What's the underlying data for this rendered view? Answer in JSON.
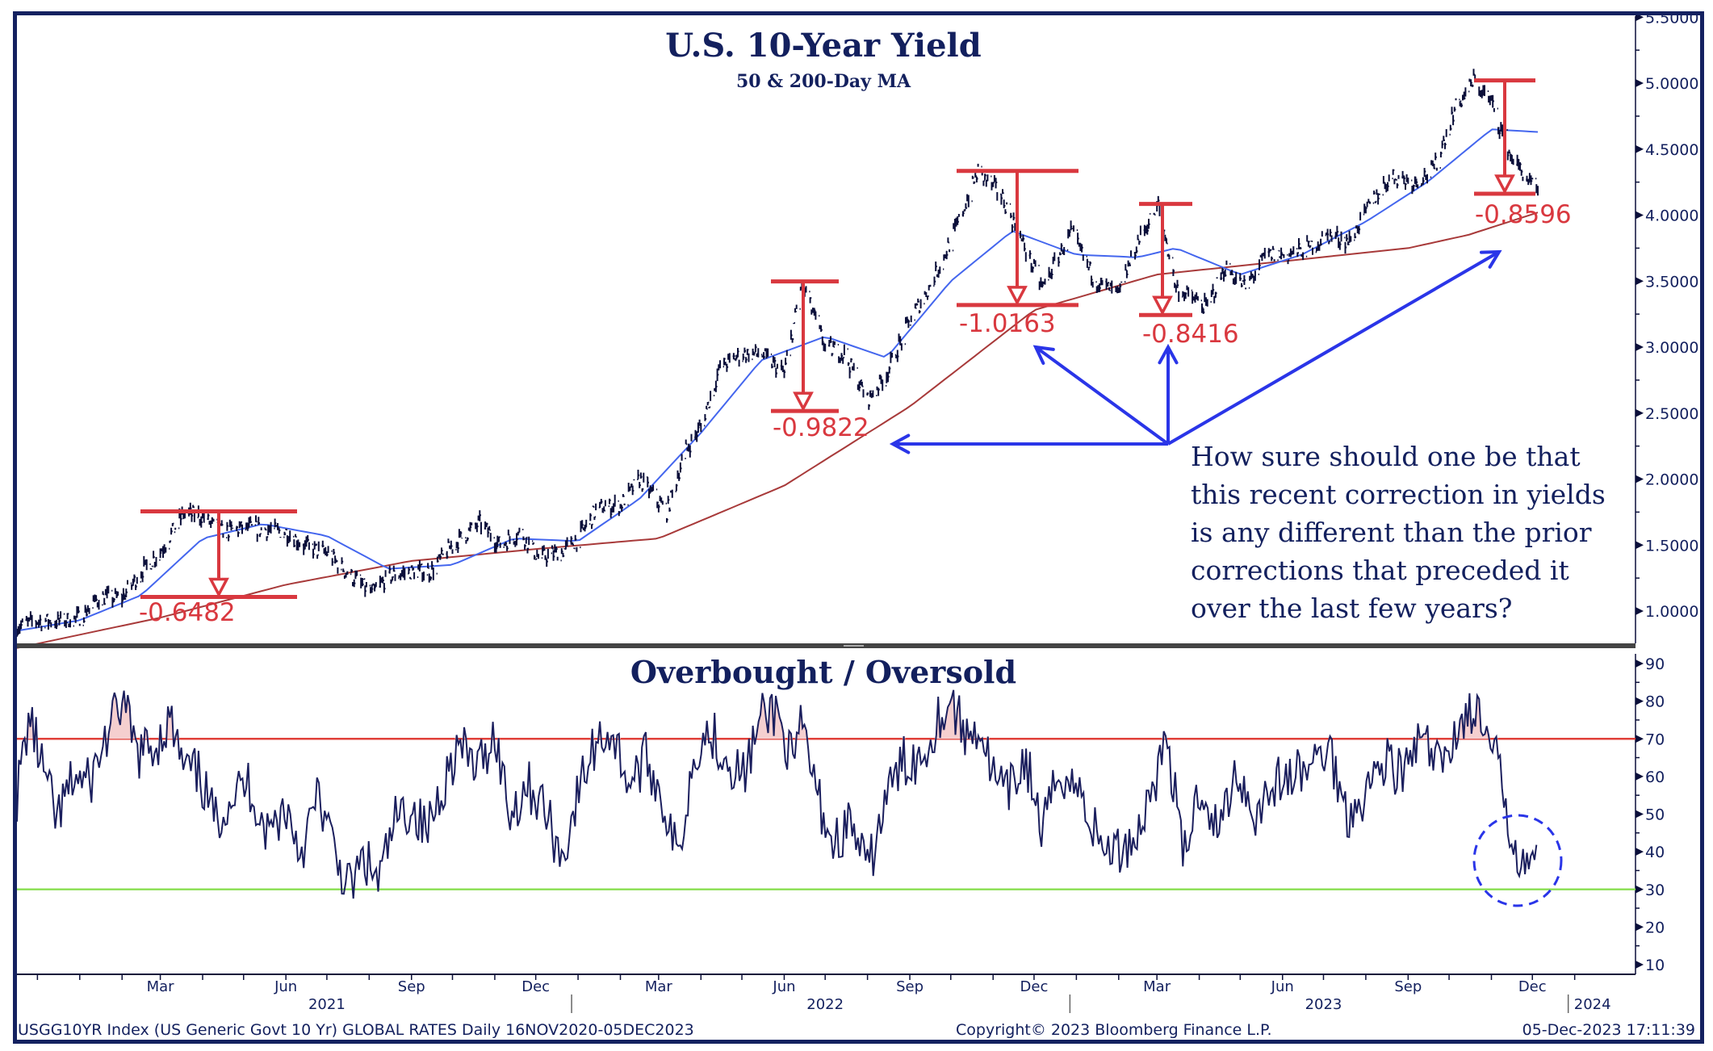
{
  "colors": {
    "frame": "#142160",
    "price": "#0b0f3a",
    "ma50": "#4466ee",
    "ma200": "#a83a3a",
    "annotation_red": "#d9383f",
    "annotation_blue": "#2a35e8",
    "overbought_line": "#e0403a",
    "oversold_line": "#8fe05a",
    "overbought_fill": "#f5cfcf",
    "rsi": "#1b1f5e",
    "title": "#13205e"
  },
  "footer": {
    "security": "USGG10YR Index (US Generic Govt 10 Yr) GLOBAL RATES  Daily 16NOV2020-05DEC2023",
    "copyright": "Copyright© 2023 Bloomberg Finance L.P.",
    "timestamp": "05-Dec-2023 17:11:39"
  },
  "note": {
    "lines": [
      "How sure should one be that",
      "this recent correction in yields",
      "is any different than the prior",
      "corrections that preceded it",
      "over the last few years?"
    ]
  },
  "chart_data": [
    {
      "type": "line",
      "title": "U.S. 10-Year Yield",
      "subtitle": "50 & 200-Day MA",
      "xlabel": "",
      "ylabel": "",
      "y_axis_side": "right",
      "ylim": [
        0.85,
        5.5
      ],
      "yticks": [
        1.0,
        1.5,
        2.0,
        2.5,
        3.0,
        3.5,
        4.0,
        4.5,
        5.0,
        5.5
      ],
      "ytick_labels": [
        "1.0000",
        "1.5000",
        "2.0000",
        "2.5000",
        "3.0000",
        "3.5000",
        "4.0000",
        "4.5000",
        "5.0000",
        "5.5000"
      ],
      "x_range": [
        "2020-11-16",
        "2024-01-20"
      ],
      "grid": false,
      "legend": "none",
      "series": [
        {
          "name": "USGG10YR Index",
          "style": "bars",
          "x": [
            "2020-11-16",
            "2020-12-01",
            "2020-12-15",
            "2021-01-01",
            "2021-01-15",
            "2021-02-01",
            "2021-02-15",
            "2021-03-01",
            "2021-03-18",
            "2021-03-31",
            "2021-04-15",
            "2021-05-01",
            "2021-05-15",
            "2021-06-01",
            "2021-06-15",
            "2021-07-01",
            "2021-07-15",
            "2021-08-03",
            "2021-08-15",
            "2021-09-01",
            "2021-09-15",
            "2021-10-01",
            "2021-10-21",
            "2021-11-05",
            "2021-11-20",
            "2021-12-03",
            "2021-12-20",
            "2022-01-01",
            "2022-01-15",
            "2022-02-01",
            "2022-02-15",
            "2022-03-07",
            "2022-03-20",
            "2022-04-01",
            "2022-04-15",
            "2022-05-01",
            "2022-05-15",
            "2022-06-01",
            "2022-06-14",
            "2022-07-01",
            "2022-07-15",
            "2022-08-01",
            "2022-08-15",
            "2022-09-01",
            "2022-09-15",
            "2022-10-01",
            "2022-10-21",
            "2022-11-07",
            "2022-11-20",
            "2022-12-07",
            "2022-12-28",
            "2023-01-15",
            "2023-02-01",
            "2023-02-15",
            "2023-03-02",
            "2023-03-15",
            "2023-04-06",
            "2023-04-20",
            "2023-05-05",
            "2023-05-20",
            "2023-06-05",
            "2023-06-20",
            "2023-07-05",
            "2023-07-20",
            "2023-08-05",
            "2023-08-20",
            "2023-09-05",
            "2023-09-20",
            "2023-10-05",
            "2023-10-19",
            "2023-11-01",
            "2023-11-15",
            "2023-12-05"
          ],
          "values": [
            0.88,
            0.93,
            0.92,
            0.95,
            1.1,
            1.1,
            1.3,
            1.45,
            1.74,
            1.72,
            1.6,
            1.63,
            1.62,
            1.6,
            1.49,
            1.44,
            1.3,
            1.13,
            1.26,
            1.3,
            1.3,
            1.5,
            1.67,
            1.5,
            1.6,
            1.4,
            1.45,
            1.55,
            1.78,
            1.8,
            2.0,
            1.75,
            2.2,
            2.4,
            2.85,
            2.95,
            2.95,
            2.8,
            3.49,
            3.0,
            2.95,
            2.6,
            2.8,
            3.2,
            3.45,
            3.8,
            4.33,
            4.15,
            3.85,
            3.45,
            3.87,
            3.5,
            3.4,
            3.8,
            4.08,
            3.45,
            3.3,
            3.6,
            3.45,
            3.7,
            3.7,
            3.75,
            3.85,
            3.8,
            4.1,
            4.3,
            4.25,
            4.35,
            4.8,
            5.02,
            4.85,
            4.45,
            4.16
          ]
        },
        {
          "name": "50-Day MA",
          "x": [
            "2020-11-16",
            "2021-01-01",
            "2021-02-15",
            "2021-04-01",
            "2021-05-15",
            "2021-07-01",
            "2021-08-15",
            "2021-10-01",
            "2021-11-15",
            "2022-01-01",
            "2022-02-15",
            "2022-04-01",
            "2022-05-15",
            "2022-07-01",
            "2022-08-15",
            "2022-10-01",
            "2022-11-15",
            "2023-01-01",
            "2023-02-15",
            "2023-03-15",
            "2023-05-01",
            "2023-06-15",
            "2023-08-01",
            "2023-09-15",
            "2023-11-01",
            "2023-12-05"
          ],
          "values": [
            0.85,
            0.93,
            1.12,
            1.55,
            1.66,
            1.57,
            1.32,
            1.35,
            1.55,
            1.53,
            1.85,
            2.35,
            2.9,
            3.08,
            2.92,
            3.5,
            3.88,
            3.7,
            3.68,
            3.75,
            3.55,
            3.7,
            3.95,
            4.25,
            4.65,
            4.63
          ]
        },
        {
          "name": "200-Day MA",
          "x": [
            "2020-11-16",
            "2021-03-01",
            "2021-06-01",
            "2021-09-01",
            "2021-12-01",
            "2022-03-01",
            "2022-06-01",
            "2022-09-01",
            "2022-12-01",
            "2023-03-01",
            "2023-06-01",
            "2023-09-01",
            "2023-10-15",
            "2023-12-05"
          ],
          "values": [
            0.72,
            0.95,
            1.2,
            1.38,
            1.47,
            1.55,
            1.95,
            2.55,
            3.28,
            3.55,
            3.65,
            3.75,
            3.85,
            4.02
          ]
        }
      ],
      "annotations": [
        {
          "type": "drawdown",
          "label": "-0.6482",
          "from_date": "2021-03-18",
          "to_date": "2021-07-20",
          "high": 1.755,
          "low": 1.107
        },
        {
          "type": "drawdown",
          "label": "-0.9822",
          "from_date": "2022-06-14",
          "to_date": "2022-08-01",
          "high": 3.498,
          "low": 2.516
        },
        {
          "type": "drawdown",
          "label": "-1.0163",
          "from_date": "2022-10-21",
          "to_date": "2022-12-07",
          "high": 4.335,
          "low": 3.319
        },
        {
          "type": "drawdown",
          "label": "-0.8416",
          "from_date": "2023-03-02",
          "to_date": "2023-03-24",
          "high": 4.085,
          "low": 3.243
        },
        {
          "type": "drawdown",
          "label": "-0.8596",
          "from_date": "2023-10-19",
          "to_date": "2023-12-05",
          "high": 5.021,
          "low": 4.162
        }
      ]
    },
    {
      "type": "line",
      "title": "Overbought / Oversold",
      "y_axis_side": "right",
      "ylim": [
        8,
        92
      ],
      "yticks": [
        10,
        20,
        30,
        40,
        50,
        60,
        70,
        80,
        90
      ],
      "ytick_labels": [
        "10",
        "20",
        "30",
        "40",
        "50",
        "60",
        "70",
        "80",
        "90"
      ],
      "reference_lines": [
        {
          "value": 70,
          "label": "overbought"
        },
        {
          "value": 30,
          "label": "oversold"
        }
      ],
      "grid": false,
      "legend": "none",
      "series": [
        {
          "name": "RSI",
          "x": [
            "2020-11-16",
            "2020-11-25",
            "2020-12-05",
            "2020-12-15",
            "2020-12-28",
            "2021-01-08",
            "2021-01-20",
            "2021-02-01",
            "2021-02-12",
            "2021-02-25",
            "2021-03-08",
            "2021-03-18",
            "2021-03-30",
            "2021-04-10",
            "2021-04-22",
            "2021-05-05",
            "2021-05-18",
            "2021-06-01",
            "2021-06-12",
            "2021-06-25",
            "2021-07-08",
            "2021-07-18",
            "2021-07-28",
            "2021-08-08",
            "2021-08-20",
            "2021-09-01",
            "2021-09-12",
            "2021-09-24",
            "2021-10-05",
            "2021-10-20",
            "2021-11-01",
            "2021-11-12",
            "2021-11-25",
            "2021-12-07",
            "2021-12-20",
            "2022-01-03",
            "2022-01-15",
            "2022-01-25",
            "2022-02-08",
            "2022-02-20",
            "2022-03-03",
            "2022-03-15",
            "2022-03-28",
            "2022-04-08",
            "2022-04-20",
            "2022-05-02",
            "2022-05-15",
            "2022-05-26",
            "2022-06-08",
            "2022-06-14",
            "2022-06-25",
            "2022-07-07",
            "2022-07-20",
            "2022-08-01",
            "2022-08-15",
            "2022-08-28",
            "2022-09-10",
            "2022-09-22",
            "2022-10-02",
            "2022-10-12",
            "2022-10-21",
            "2022-11-03",
            "2022-11-12",
            "2022-11-25",
            "2022-12-07",
            "2022-12-20",
            "2023-01-05",
            "2023-01-18",
            "2023-02-01",
            "2023-02-15",
            "2023-02-28",
            "2023-03-09",
            "2023-03-20",
            "2023-04-02",
            "2023-04-15",
            "2023-04-28",
            "2023-05-12",
            "2023-05-25",
            "2023-06-08",
            "2023-06-20",
            "2023-07-05",
            "2023-07-18",
            "2023-08-01",
            "2023-08-15",
            "2023-08-28",
            "2023-09-10",
            "2023-09-25",
            "2023-10-05",
            "2023-10-19",
            "2023-10-28",
            "2023-11-07",
            "2023-11-15",
            "2023-11-22",
            "2023-12-05"
          ],
          "values": [
            55,
            76,
            62,
            48,
            60,
            58,
            70,
            80,
            66,
            68,
            75,
            62,
            60,
            48,
            55,
            58,
            45,
            52,
            40,
            55,
            38,
            30,
            38,
            32,
            48,
            52,
            45,
            58,
            68,
            62,
            72,
            50,
            58,
            52,
            38,
            58,
            70,
            72,
            58,
            65,
            55,
            38,
            68,
            72,
            65,
            60,
            75,
            78,
            62,
            74,
            55,
            42,
            48,
            34,
            55,
            64,
            65,
            76,
            80,
            70,
            74,
            58,
            55,
            65,
            45,
            62,
            55,
            42,
            40,
            45,
            60,
            70,
            38,
            58,
            45,
            62,
            50,
            58,
            60,
            62,
            68,
            50,
            56,
            65,
            60,
            70,
            62,
            72,
            78,
            70,
            62,
            45,
            40,
            36
          ]
        }
      ]
    },
    {
      "type": "axis",
      "x_tick_labels": [
        "Mar",
        "Jun",
        "Sep",
        "Dec",
        "Mar",
        "Jun",
        "Sep",
        "Dec",
        "Mar",
        "Jun",
        "Sep",
        "Dec"
      ],
      "x_tick_dates": [
        "2021-03-01",
        "2021-06-01",
        "2021-09-01",
        "2021-12-01",
        "2022-03-01",
        "2022-06-01",
        "2022-09-01",
        "2022-12-01",
        "2023-03-01",
        "2023-06-01",
        "2023-09-01",
        "2023-12-01"
      ],
      "year_labels": [
        "2021",
        "2022",
        "2023",
        "2024"
      ]
    }
  ]
}
